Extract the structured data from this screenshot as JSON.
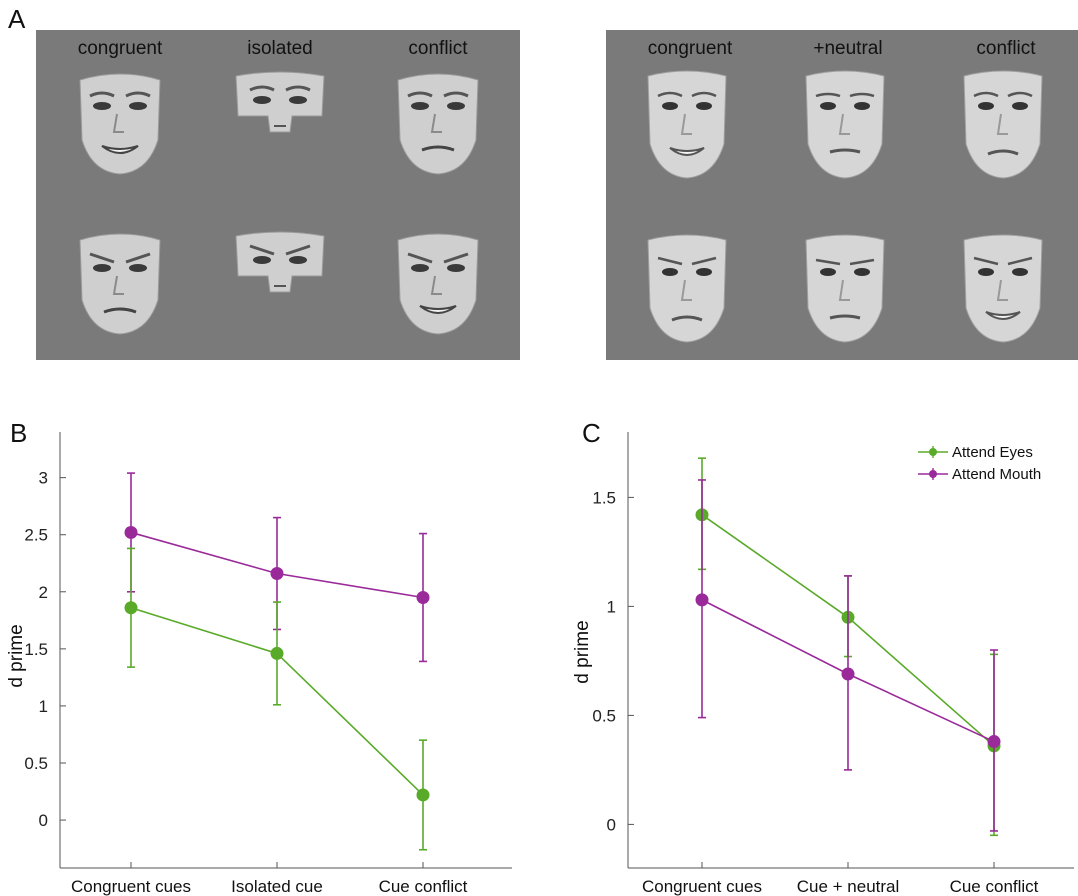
{
  "figure": {
    "panel_a_letter": "A",
    "panel_b_letter": "B",
    "panel_c_letter": "C"
  },
  "stimuli": {
    "left": {
      "labels": [
        "congruent",
        "isolated",
        "conflict"
      ],
      "rows": [
        [
          "happy face, full",
          "eyes-only patch",
          "eyes happy, mouth neutral"
        ],
        [
          "angry face, full",
          "eyes-only patch",
          "eyes angry, mouth happy"
        ]
      ]
    },
    "right": {
      "labels": [
        "congruent",
        "+neutral",
        "conflict"
      ],
      "rows": [
        [
          "happy face, full",
          "neutral face",
          "eyes happy, mouth neutral"
        ],
        [
          "angry face, full",
          "neutral face",
          "eyes angry, mouth happy"
        ]
      ]
    }
  },
  "chart_data": [
    {
      "type": "line",
      "panel": "B",
      "ylabel": "d prime",
      "categories": [
        "Congruent cues",
        "Isolated cue",
        "Cue conflict"
      ],
      "yticks": [
        "0",
        "0.5",
        "1",
        "1.5",
        "2",
        "2.5",
        "3"
      ],
      "ylim": [
        -0.42,
        3.4
      ],
      "colors": {
        "eyes": "#5aaa2a",
        "mouth": "#9a2a9a"
      },
      "series": [
        {
          "key": "mouth",
          "values": [
            2.52,
            2.16,
            1.95
          ],
          "err_low": [
            2.0,
            1.67,
            1.39
          ],
          "err_high": [
            3.04,
            2.65,
            2.51
          ]
        },
        {
          "key": "eyes",
          "values": [
            1.86,
            1.46,
            0.22
          ],
          "err_low": [
            1.34,
            1.01,
            -0.26
          ],
          "err_high": [
            2.38,
            1.91,
            0.7
          ]
        }
      ]
    },
    {
      "type": "line",
      "panel": "C",
      "ylabel": "d prime",
      "categories": [
        "Congruent cues",
        "Cue + neutral",
        "Cue conflict"
      ],
      "yticks": [
        "0",
        "0.5",
        "1",
        "1.5"
      ],
      "ylim": [
        -0.2,
        1.8
      ],
      "legend": [
        "Attend Eyes",
        "Attend Mouth"
      ],
      "legend_position": "top-right",
      "colors": {
        "eyes": "#5aaa2a",
        "mouth": "#9a2a9a"
      },
      "series": [
        {
          "key": "eyes",
          "name": "Attend Eyes",
          "values": [
            1.42,
            0.95,
            0.36
          ],
          "err_low": [
            1.17,
            0.77,
            -0.05
          ],
          "err_high": [
            1.68,
            1.14,
            0.78
          ]
        },
        {
          "key": "mouth",
          "name": "Attend Mouth",
          "values": [
            1.03,
            0.69,
            0.38
          ],
          "err_low": [
            0.49,
            0.25,
            -0.03
          ],
          "err_high": [
            1.58,
            1.14,
            0.8
          ]
        }
      ]
    }
  ]
}
